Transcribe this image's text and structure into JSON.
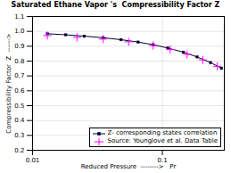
{
  "chart_data": {
    "type": "line",
    "title": "Saturated Ethane Vapor 's  Compressibility Factor Z",
    "xlabel": "Reduced Pressure  -------->   Pr",
    "ylabel": "Compressibility Factor  Z  ------>",
    "log": "x",
    "grid": true,
    "legend": "lower right",
    "xlim": [
      0.01,
      0.3
    ],
    "ylim": [
      0.2,
      1.1
    ],
    "xticks": [
      0.01,
      0.1
    ],
    "yticks": [
      0.2,
      0.3,
      0.4,
      0.5,
      0.6,
      0.7,
      0.8,
      0.9,
      {
        "value": 1,
        "label": "1.0"
      },
      1.1
    ],
    "series": [
      {
        "name": "Z- corresponding states correlation",
        "type": "line",
        "marker": "square",
        "color": "#000033",
        "x": [
          0.013,
          0.018,
          0.025,
          0.035,
          0.048,
          0.065,
          0.085,
          0.11,
          0.145,
          0.185,
          0.235,
          0.285
        ],
        "values": [
          0.984,
          0.977,
          0.968,
          0.957,
          0.944,
          0.928,
          0.91,
          0.888,
          0.86,
          0.828,
          0.79,
          0.752
        ]
      },
      {
        "name": "Source: Younglove et al. Data Table",
        "type": "scatter",
        "marker": "plus",
        "color": "#ff00ff",
        "x": [
          0.013,
          0.022,
          0.035,
          0.055,
          0.085,
          0.115,
          0.155,
          0.205,
          0.265
        ],
        "values": [
          0.972,
          0.96,
          0.948,
          0.93,
          0.905,
          0.878,
          0.845,
          0.808,
          0.765
        ]
      }
    ]
  }
}
